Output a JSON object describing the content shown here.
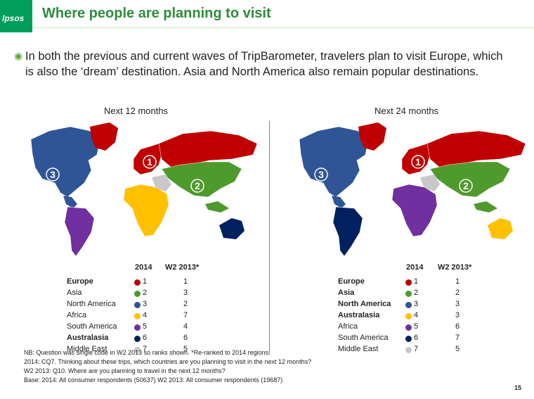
{
  "brand": {
    "logo_text": "Ipsos"
  },
  "slide": {
    "title": "Where people are planning to visit",
    "bullet": "In both the previous and current waves of TripBarometer, travelers plan to visit Europe, which is also the ‘dream’ destination. Asia and North America also remain popular destinations."
  },
  "colors": {
    "red": "#c00000",
    "green": "#4e9a2c",
    "blue": "#2f5597",
    "yellow": "#ffc000",
    "purple": "#7030a0",
    "navy": "#002060",
    "grey": "#c8c8c8"
  },
  "left": {
    "title": "Next 12 months",
    "header_2014": "2014",
    "header_2013": "W2 2013*",
    "map_labels": {
      "europe": "1",
      "asia": "2",
      "north_america": "3"
    },
    "rows": [
      {
        "name": "Europe",
        "rank2014": "1",
        "rank2013": "1",
        "color": "#c00000",
        "bold": true
      },
      {
        "name": "Asia",
        "rank2014": "2",
        "rank2013": "3",
        "color": "#4e9a2c",
        "bold": false
      },
      {
        "name": "North America",
        "rank2014": "3",
        "rank2013": "2",
        "color": "#2f5597",
        "bold": false
      },
      {
        "name": "Africa",
        "rank2014": "4",
        "rank2013": "7",
        "color": "#ffc000",
        "bold": false
      },
      {
        "name": "South America",
        "rank2014": "5",
        "rank2013": "4",
        "color": "#7030a0",
        "bold": false
      },
      {
        "name": "Australasia",
        "rank2014": "6",
        "rank2013": "6",
        "color": "#002060",
        "bold": true
      },
      {
        "name": "Middle East",
        "rank2014": "7",
        "rank2013": "5",
        "color": "#c8c8c8",
        "bold": false
      }
    ]
  },
  "right": {
    "title": "Next 24 months",
    "header_2014": "2014",
    "header_2013": "W2 2013*",
    "map_labels": {
      "europe": "1",
      "asia": "2",
      "north_america": "3"
    },
    "rows": [
      {
        "name": "Europe",
        "rank2014": "1",
        "rank2013": "1",
        "color": "#c00000",
        "bold": true
      },
      {
        "name": "Asia",
        "rank2014": "2",
        "rank2013": "2",
        "color": "#4e9a2c",
        "bold": true
      },
      {
        "name": "North America",
        "rank2014": "3",
        "rank2013": "3",
        "color": "#2f5597",
        "bold": true
      },
      {
        "name": "Australasia",
        "rank2014": "4",
        "rank2013": "3",
        "color": "#ffc000",
        "bold": true
      },
      {
        "name": "Africa",
        "rank2014": "5",
        "rank2013": "6",
        "color": "#7030a0",
        "bold": false
      },
      {
        "name": "South America",
        "rank2014": "6",
        "rank2013": "7",
        "color": "#002060",
        "bold": false
      },
      {
        "name": "Middle East",
        "rank2014": "7",
        "rank2013": "5",
        "color": "#c8c8c8",
        "bold": false
      }
    ]
  },
  "footnotes": {
    "nb": "NB: Question was single code in W2 2013 so ranks shown. *Re-ranked to 2014 regions.",
    "q2014": "2014: CQ7. Thinking about these trips, which countries are you planning to visit in the next 12 months?",
    "q2013": "W2 2013: Q10. Where are you planning to travel in the next 12 months?",
    "base": "Base: 2014: All consumer respondents (50637) W2 2013: All consumer respondents (19687)"
  },
  "page_number": "15"
}
